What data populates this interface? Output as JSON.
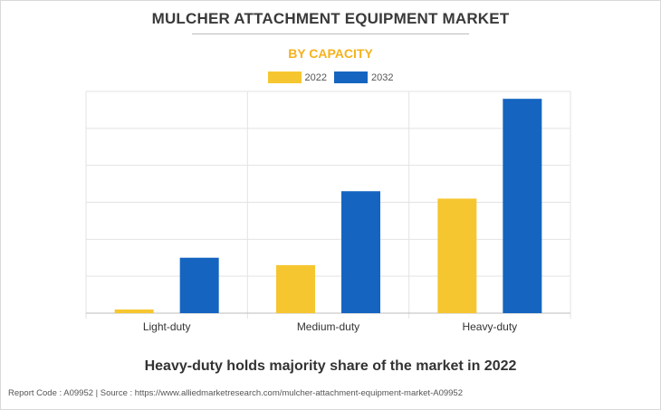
{
  "header": {
    "title": "MULCHER ATTACHMENT EQUIPMENT MARKET",
    "subtitle": "BY CAPACITY"
  },
  "colors": {
    "series_2022": "#f6c630",
    "series_2032": "#1565c0",
    "title": "#3a3a3a",
    "subtitle": "#f6b21b"
  },
  "chart_data": {
    "type": "bar",
    "categories": [
      "Light-duty",
      "Medium-duty",
      "Heavy-duty"
    ],
    "series": [
      {
        "name": "2022",
        "values": [
          0.1,
          1.3,
          3.1
        ]
      },
      {
        "name": "2032",
        "values": [
          1.5,
          3.3,
          5.8
        ]
      }
    ],
    "ylim": [
      0,
      6
    ],
    "y_ticks_visible": false,
    "grid": true,
    "legend_position": "top-center"
  },
  "footer": {
    "note": "Heavy-duty holds majority share of the market in 2022",
    "source": "Report Code : A09952  |  Source : https://www.alliedmarketresearch.com/mulcher-attachment-equipment-market-A09952"
  }
}
